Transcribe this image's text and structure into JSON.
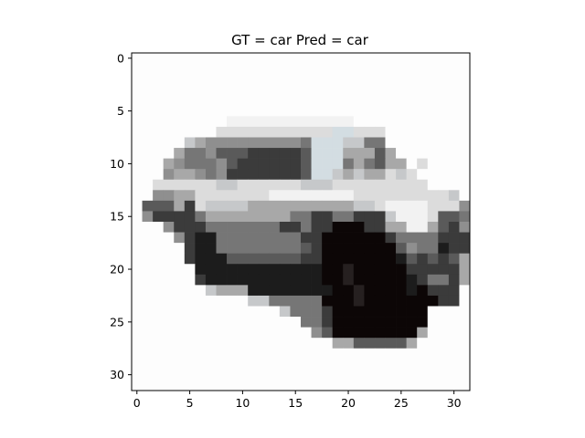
{
  "title": "GT = car Pred = car",
  "image": {
    "subject": "car",
    "rows": 32,
    "cols": 32,
    "palette": {
      "W": "#fdfdfd",
      "w": "#f2f2f2",
      "l": "#dcdcdc",
      "L": "#c6c8ca",
      "s": "#d3dde2",
      "m": "#a8a8a8",
      "g": "#8f8f8f",
      "M": "#767676",
      "d": "#5a5a5a",
      "D": "#3b3b3b",
      "k": "#1c1c1c",
      "K": "#0c0606",
      "r": "#262020"
    },
    "pixel_rows": [
      "WWWWWWWWWWWWWWWWWWWWWWWWWWWWWWWW",
      "WWWWWWWWWWWWWWWWWWWWWWWWWWWWWWWW",
      "WWWWWWWWWWWWWWWWWWWWWWWWWWWWWWWW",
      "WWWWWWWWWWWWWWWWWWWWWWWWWWWWWWWW",
      "WWWWWWWWWWWWWWWWWWWWWWWWWWWWWWWW",
      "WWWWWWWWWWWWWWWWWWWWWWWWWWWWWWWW",
      "WWWWWWWWWwwwwwwwwwwwwWWWWWWWWWWW",
      "WWWWWWWWlllllllllllsslllWWWWWWWW",
      "WWWWWLmgggggggggMsssLLMMWWWWWWWW",
      "WWWWmMMgdddDDDDDdsssmmmdmWWWWWWW",
      "WWWmgMMMgdDDDDDDdsssMmMdmmWlWWWW",
      "WWWgmmgMgDDDDDDDdssLmLmmlLlWWWWW",
      "WWllllllLLllllllLLLlllllllllWWWW",
      "WWggmmlllllllwwwwwwwwlllllllllLW",
      "WdddmDlLLLLmmmmmmmmmmLLlwwwwlllg",
      "WgDDDDMmmmmmmmmMMDDMMDDDLwwwlddM",
      "WWWgDDDMMMMMMMDDMDDKKKDDmmwwmdDg",
      "WWWWgDkkMMMMMMMMDDKKKKKKDMMMMDDD",
      "WWWWWDkkMMMMMMMMdDKKKKKKKdgMMkDD",
      "WWWWWDkkkdddddddDDKKKKKKKkdDdDdm",
      "WWWWWWkkkkkkkkkkkkKKrKKKKKDDDDDm",
      "WWWWWWDkkkkkkkkkkkKKrKKKKKkDMMDm",
      "WWWWWWWLmmmkkkkkkkkKKrKKKKkKDDDW",
      "WWWWWWWWWWWLLMMMMMKKKrKKKKKKKDDW",
      "WWWWWWWWWWWWWWLMMMDKKKKKKKKKWWWW",
      "WWWWWWWWWWWWWWWWMMDKKKKKKKKKWWWW",
      "WWWWWWWWWWWWWWWWWgdKKKKKKKKmWWWW",
      "WWWWWWWWWWWWWWWWWWWmmdddddmWWWWW",
      "WWWWWWWWWWWWWWWWWWWWWWWWWWWWWWWW",
      "WWWWWWWWWWWWWWWWWWWWWWWWWWWWWWWW",
      "WWWWWWWWWWWWWWWWWWWWWWWWWWWWWWWW",
      "WWWWWWWWWWWWWWWWWWWWWWWWWWWWWWWW"
    ]
  },
  "axes": {
    "x_ticks": [
      0,
      5,
      10,
      15,
      20,
      25,
      30
    ],
    "y_ticks": [
      0,
      5,
      10,
      15,
      20,
      25,
      30
    ],
    "x_labels": [
      "0",
      "5",
      "10",
      "15",
      "20",
      "25",
      "30"
    ],
    "y_labels": [
      "0",
      "5",
      "10",
      "15",
      "20",
      "25",
      "30"
    ],
    "xlim": [
      -0.5,
      31.5
    ],
    "ylim": [
      31.5,
      -0.5
    ]
  }
}
